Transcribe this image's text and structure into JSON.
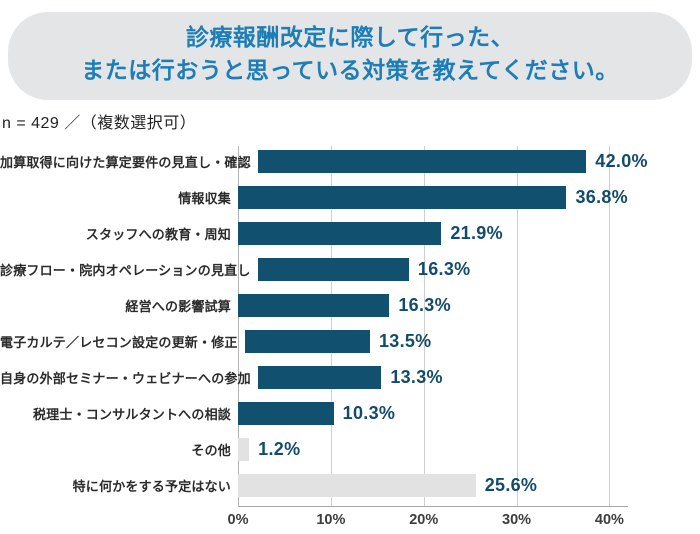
{
  "header": {
    "title_line1": "診療報酬改定に際して行った、",
    "title_line2": "または行おうと思っている対策を教えてください。",
    "sample_note": "n = 429 ／（複数選択可）"
  },
  "colors": {
    "title_text": "#1d7db7",
    "title_bg": "#e4e5e7",
    "bar_primary": "#11506f",
    "bar_muted": "#e2e2e2",
    "value_label": "#134b6d",
    "grid_line": "#cfcfcf",
    "axis_line": "#a8a8a8",
    "label_text": "#2b2b2b"
  },
  "chart_data": {
    "type": "bar",
    "orientation": "horizontal",
    "title": "診療報酬改定に際して行った、または行おうと思っている対策を教えてください。",
    "sample_size": "n = 429",
    "note": "複数選択可",
    "categories": [
      "加算取得に向けた算定要件の見直し・確認",
      "情報収集",
      "スタッフへの教育・周知",
      "診療フロー・院内オペレーションの見直し",
      "経営への影響試算",
      "電子カルテ／レセコン設定の更新・修正",
      "自身の外部セミナー・ウェビナーへの参加",
      "税理士・コンサルタントへの相談",
      "その他",
      "特に何かをする予定はない"
    ],
    "values": [
      42.0,
      36.8,
      21.9,
      16.3,
      16.3,
      13.5,
      13.3,
      10.3,
      1.2,
      25.6
    ],
    "value_labels": [
      "42.0%",
      "36.8%",
      "21.9%",
      "16.3%",
      "16.3%",
      "13.5%",
      "13.3%",
      "10.3%",
      "1.2%",
      "25.6%"
    ],
    "bar_styles": [
      "primary",
      "primary",
      "primary",
      "primary",
      "primary",
      "primary",
      "primary",
      "primary",
      "muted",
      "muted"
    ],
    "x_ticks": [
      "0%",
      "10%",
      "20%",
      "30%",
      "40%"
    ],
    "x_tick_values": [
      0,
      10,
      20,
      30,
      40
    ],
    "xlim": [
      0,
      42
    ],
    "grid": true,
    "legend": false
  }
}
